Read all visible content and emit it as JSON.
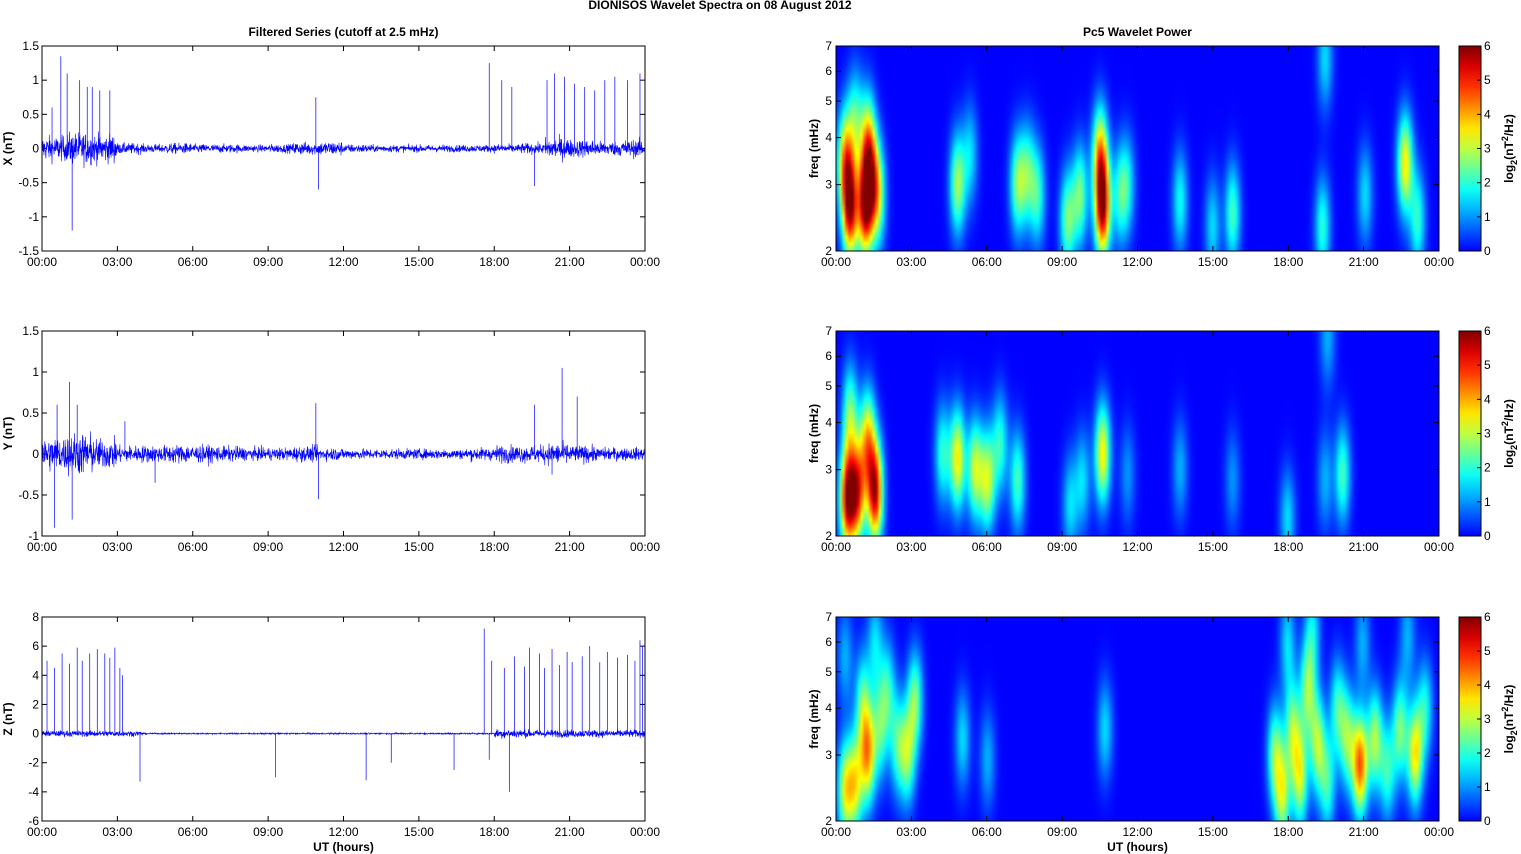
{
  "figure": {
    "title": "DIONISOS Wavelet Spectra on 08 August    2012"
  },
  "chart_data": [
    {
      "type": "line",
      "title": "Filtered Series (cutoff at 2.5 mHz)",
      "xlabel": "",
      "ylabel": "X (nT)",
      "xlim": [
        "00:00",
        "00:00"
      ],
      "x_ticks": [
        "00:00",
        "03:00",
        "06:00",
        "09:00",
        "12:00",
        "15:00",
        "18:00",
        "21:00",
        "00:00"
      ],
      "ylim": [
        -1.5,
        1.5
      ],
      "y_ticks": [
        "-1.5",
        "-1",
        "-0.5",
        "0",
        "0.5",
        "1",
        "1.5"
      ],
      "grid": false,
      "series": [
        {
          "color": "#0000ff",
          "baseline_amplitude_by_hour": [
            0.35,
            0.45,
            0.4,
            0.15,
            0.12,
            0.15,
            0.12,
            0.12,
            0.1,
            0.12,
            0.18,
            0.2,
            0.12,
            0.1,
            0.1,
            0.1,
            0.1,
            0.1,
            0.12,
            0.15,
            0.3,
            0.25,
            0.2,
            0.25
          ],
          "spikes": [
            [
              0.4,
              0.6
            ],
            [
              0.75,
              1.35
            ],
            [
              1.0,
              1.1
            ],
            [
              1.2,
              -1.2
            ],
            [
              1.5,
              1.0
            ],
            [
              1.8,
              0.9
            ],
            [
              2.0,
              0.9
            ],
            [
              2.3,
              0.85
            ],
            [
              2.7,
              0.85
            ],
            [
              10.9,
              0.75
            ],
            [
              11.0,
              -0.6
            ],
            [
              17.8,
              1.25
            ],
            [
              18.3,
              1.0
            ],
            [
              18.7,
              0.9
            ],
            [
              19.6,
              -0.55
            ],
            [
              20.1,
              1.0
            ],
            [
              20.4,
              1.1
            ],
            [
              20.8,
              1.05
            ],
            [
              21.2,
              0.95
            ],
            [
              21.6,
              0.9
            ],
            [
              22.0,
              0.85
            ],
            [
              22.4,
              1.0
            ],
            [
              22.8,
              1.05
            ],
            [
              23.3,
              1.0
            ],
            [
              23.8,
              1.1
            ]
          ]
        }
      ]
    },
    {
      "type": "heatmap",
      "title": "Pc5 Wavelet Power",
      "xlabel": "",
      "ylabel": "freq (mHz)",
      "x_ticks": [
        "00:00",
        "03:00",
        "06:00",
        "09:00",
        "12:00",
        "15:00",
        "18:00",
        "21:00",
        "00:00"
      ],
      "y_scale": "log",
      "ylim": [
        2,
        7
      ],
      "y_ticks": [
        "2",
        "3",
        "4",
        "5",
        "6",
        "7"
      ],
      "colorbar": {
        "label": "log2(nT2/Hz)",
        "label_main": "log",
        "label_sub1": "2",
        "label_mid": "(nT",
        "label_sup": "2",
        "label_end": "/Hz)",
        "range": [
          0,
          6
        ],
        "ticks": [
          "0",
          "1",
          "2",
          "3",
          "4",
          "5",
          "6"
        ],
        "colormap": "jet"
      },
      "blobs": [
        [
          0.5,
          2.6,
          5.5
        ],
        [
          1.1,
          2.6,
          5.0
        ],
        [
          0.3,
          3.5,
          3.5
        ],
        [
          1.3,
          3.2,
          3.0
        ],
        [
          1.6,
          2.8,
          3.0
        ],
        [
          0.7,
          4.5,
          2.0
        ],
        [
          1.2,
          4.0,
          2.5
        ],
        [
          4.8,
          3.0,
          2.8
        ],
        [
          5.3,
          3.6,
          1.5
        ],
        [
          7.2,
          3.0,
          2.5
        ],
        [
          7.6,
          3.2,
          2.0
        ],
        [
          8.0,
          2.8,
          2.0
        ],
        [
          9.2,
          2.4,
          2.5
        ],
        [
          9.7,
          2.8,
          2.5
        ],
        [
          10.6,
          2.6,
          5.5
        ],
        [
          10.5,
          3.6,
          3.5
        ],
        [
          11.3,
          2.8,
          1.8
        ],
        [
          11.6,
          3.0,
          1.5
        ],
        [
          13.7,
          2.7,
          1.8
        ],
        [
          15.0,
          2.3,
          1.5
        ],
        [
          15.8,
          2.5,
          2.2
        ],
        [
          19.4,
          2.3,
          2.0
        ],
        [
          19.5,
          6.5,
          1.5
        ],
        [
          21.1,
          2.8,
          1.5
        ],
        [
          22.7,
          3.4,
          3.5
        ],
        [
          23.2,
          2.4,
          2.0
        ]
      ]
    },
    {
      "type": "line",
      "title": "",
      "xlabel": "",
      "ylabel": "Y (nT)",
      "x_ticks": [
        "00:00",
        "03:00",
        "06:00",
        "09:00",
        "12:00",
        "15:00",
        "18:00",
        "21:00",
        "00:00"
      ],
      "ylim": [
        -1,
        1.5
      ],
      "y_ticks": [
        "-1",
        "-0.5",
        "0",
        "0.5",
        "1",
        "1.5"
      ],
      "grid": false,
      "series": [
        {
          "color": "#0000ff",
          "baseline_amplitude_by_hour": [
            0.4,
            0.5,
            0.35,
            0.2,
            0.2,
            0.22,
            0.2,
            0.18,
            0.15,
            0.15,
            0.18,
            0.15,
            0.12,
            0.12,
            0.12,
            0.12,
            0.12,
            0.15,
            0.2,
            0.2,
            0.25,
            0.2,
            0.15,
            0.15
          ],
          "spikes": [
            [
              0.5,
              -0.9
            ],
            [
              1.1,
              0.88
            ],
            [
              1.2,
              -0.8
            ],
            [
              0.6,
              0.6
            ],
            [
              1.4,
              0.6
            ],
            [
              3.3,
              0.4
            ],
            [
              4.5,
              -0.35
            ],
            [
              10.9,
              0.62
            ],
            [
              11.0,
              -0.55
            ],
            [
              19.6,
              0.6
            ],
            [
              20.7,
              1.05
            ],
            [
              21.3,
              0.7
            ],
            [
              20.3,
              -0.25
            ]
          ]
        }
      ]
    },
    {
      "type": "heatmap",
      "title": "",
      "xlabel": "",
      "ylabel": "freq (mHz)",
      "x_ticks": [
        "00:00",
        "03:00",
        "06:00",
        "09:00",
        "12:00",
        "15:00",
        "18:00",
        "21:00",
        "00:00"
      ],
      "y_scale": "log",
      "ylim": [
        2,
        7
      ],
      "y_ticks": [
        "2",
        "3",
        "4",
        "5",
        "6",
        "7"
      ],
      "colorbar": {
        "label": "log2(nT2/Hz)",
        "label_main": "log",
        "label_sub1": "2",
        "label_mid": "(nT",
        "label_sup": "2",
        "label_end": "/Hz)",
        "range": [
          0,
          6
        ],
        "ticks": [
          "0",
          "1",
          "2",
          "3",
          "4",
          "5",
          "6"
        ],
        "colormap": "jet"
      },
      "blobs": [
        [
          0.4,
          2.5,
          5.5
        ],
        [
          0.8,
          2.6,
          4.5
        ],
        [
          1.5,
          2.6,
          5.5
        ],
        [
          1.2,
          3.6,
          3.5
        ],
        [
          0.5,
          4.2,
          2.5
        ],
        [
          4.2,
          3.3,
          2.0
        ],
        [
          4.8,
          3.2,
          3.5
        ],
        [
          5.5,
          3.0,
          3.0
        ],
        [
          6.0,
          2.8,
          3.0
        ],
        [
          6.5,
          3.5,
          2.0
        ],
        [
          7.2,
          2.8,
          2.2
        ],
        [
          9.3,
          2.4,
          1.5
        ],
        [
          9.8,
          2.8,
          1.5
        ],
        [
          10.6,
          3.3,
          3.5
        ],
        [
          11.6,
          2.9,
          1.0
        ],
        [
          13.7,
          3.0,
          1.2
        ],
        [
          15.8,
          2.8,
          1.0
        ],
        [
          18.0,
          2.2,
          1.5
        ],
        [
          19.5,
          2.8,
          1.2
        ],
        [
          20.2,
          2.9,
          2.2
        ],
        [
          19.6,
          6.8,
          1.2
        ]
      ]
    },
    {
      "type": "line",
      "title": "",
      "xlabel": "UT (hours)",
      "ylabel": "Z (nT)",
      "x_ticks": [
        "00:00",
        "03:00",
        "06:00",
        "09:00",
        "12:00",
        "15:00",
        "18:00",
        "21:00",
        "00:00"
      ],
      "ylim": [
        -6,
        8
      ],
      "y_ticks": [
        "-6",
        "-4",
        "-2",
        "0",
        "2",
        "4",
        "6",
        "8"
      ],
      "grid": false,
      "series": [
        {
          "color": "#0000ff",
          "baseline_amplitude_by_hour": [
            0.4,
            0.4,
            0.4,
            0.35,
            0.1,
            0.1,
            0.1,
            0.1,
            0.1,
            0.1,
            0.1,
            0.1,
            0.1,
            0.1,
            0.1,
            0.1,
            0.1,
            0.1,
            0.6,
            0.5,
            0.5,
            0.5,
            0.5,
            0.5
          ],
          "spikes": [
            [
              0.2,
              5.0
            ],
            [
              0.5,
              4.5
            ],
            [
              0.8,
              5.5
            ],
            [
              1.1,
              4.8
            ],
            [
              1.4,
              5.9
            ],
            [
              1.6,
              5.0
            ],
            [
              1.9,
              5.5
            ],
            [
              2.2,
              5.8
            ],
            [
              2.5,
              5.5
            ],
            [
              2.7,
              5.2
            ],
            [
              2.9,
              5.9
            ],
            [
              3.1,
              4.5
            ],
            [
              3.2,
              4.0
            ],
            [
              3.9,
              -3.3
            ],
            [
              9.3,
              -3.0
            ],
            [
              12.9,
              -3.2
            ],
            [
              13.9,
              -2.0
            ],
            [
              16.4,
              -2.5
            ],
            [
              17.6,
              7.2
            ],
            [
              17.8,
              -1.8
            ],
            [
              17.9,
              5.0
            ],
            [
              18.4,
              4.5
            ],
            [
              18.6,
              -4.0
            ],
            [
              18.8,
              5.3
            ],
            [
              19.2,
              4.6
            ],
            [
              19.4,
              5.9
            ],
            [
              19.8,
              5.5
            ],
            [
              20.0,
              4.5
            ],
            [
              20.3,
              5.8
            ],
            [
              20.6,
              4.7
            ],
            [
              20.9,
              5.6
            ],
            [
              21.1,
              4.9
            ],
            [
              21.5,
              5.3
            ],
            [
              21.8,
              6.0
            ],
            [
              22.2,
              4.9
            ],
            [
              22.5,
              5.6
            ],
            [
              22.9,
              5.2
            ],
            [
              23.3,
              5.4
            ],
            [
              23.6,
              5.0
            ],
            [
              23.8,
              6.4
            ],
            [
              23.9,
              6.0
            ]
          ]
        }
      ]
    },
    {
      "type": "heatmap",
      "title": "",
      "xlabel": "UT (hours)",
      "ylabel": "freq (mHz)",
      "x_ticks": [
        "00:00",
        "03:00",
        "06:00",
        "09:00",
        "12:00",
        "15:00",
        "18:00",
        "21:00",
        "00:00"
      ],
      "y_scale": "log",
      "ylim": [
        2,
        7
      ],
      "y_ticks": [
        "2",
        "3",
        "4",
        "5",
        "6",
        "7"
      ],
      "colorbar": {
        "label": "log2(nT2/Hz)",
        "label_main": "log",
        "label_sub1": "2",
        "label_mid": "(nT",
        "label_sup": "2",
        "label_end": "/Hz)",
        "range": [
          0,
          6
        ],
        "ticks": [
          "0",
          "1",
          "2",
          "3",
          "4",
          "5",
          "6"
        ],
        "colormap": "jet"
      },
      "blobs": [
        [
          0.3,
          2.4,
          3.0
        ],
        [
          0.7,
          2.5,
          3.0
        ],
        [
          1.2,
          3.0,
          3.8
        ],
        [
          1.0,
          4.2,
          2.0
        ],
        [
          1.7,
          3.5,
          2.0
        ],
        [
          2.0,
          4.5,
          1.8
        ],
        [
          2.4,
          3.2,
          2.0
        ],
        [
          2.8,
          3.0,
          2.5
        ],
        [
          3.1,
          4.2,
          2.5
        ],
        [
          0.3,
          5.5,
          1.2
        ],
        [
          1.5,
          6.0,
          1.5
        ],
        [
          5.0,
          3.3,
          1.5
        ],
        [
          6.0,
          2.9,
          1.2
        ],
        [
          10.7,
          3.5,
          1.5
        ],
        [
          17.5,
          3.0,
          2.5
        ],
        [
          17.8,
          2.3,
          2.8
        ],
        [
          18.2,
          3.5,
          2.5
        ],
        [
          18.5,
          2.6,
          3.0
        ],
        [
          18.8,
          4.5,
          2.5
        ],
        [
          19.2,
          3.2,
          2.8
        ],
        [
          19.6,
          2.5,
          2.0
        ],
        [
          20.0,
          4.0,
          2.0
        ],
        [
          20.4,
          3.3,
          2.5
        ],
        [
          20.9,
          2.8,
          4.5
        ],
        [
          21.5,
          3.3,
          2.8
        ],
        [
          22.0,
          2.7,
          2.0
        ],
        [
          22.5,
          3.5,
          2.5
        ],
        [
          23.1,
          3.0,
          3.5
        ],
        [
          23.5,
          4.0,
          1.8
        ],
        [
          18.0,
          6.0,
          1.5
        ],
        [
          19.0,
          6.5,
          1.5
        ],
        [
          21.0,
          6.0,
          1.2
        ],
        [
          22.8,
          6.3,
          1.2
        ]
      ]
    }
  ]
}
